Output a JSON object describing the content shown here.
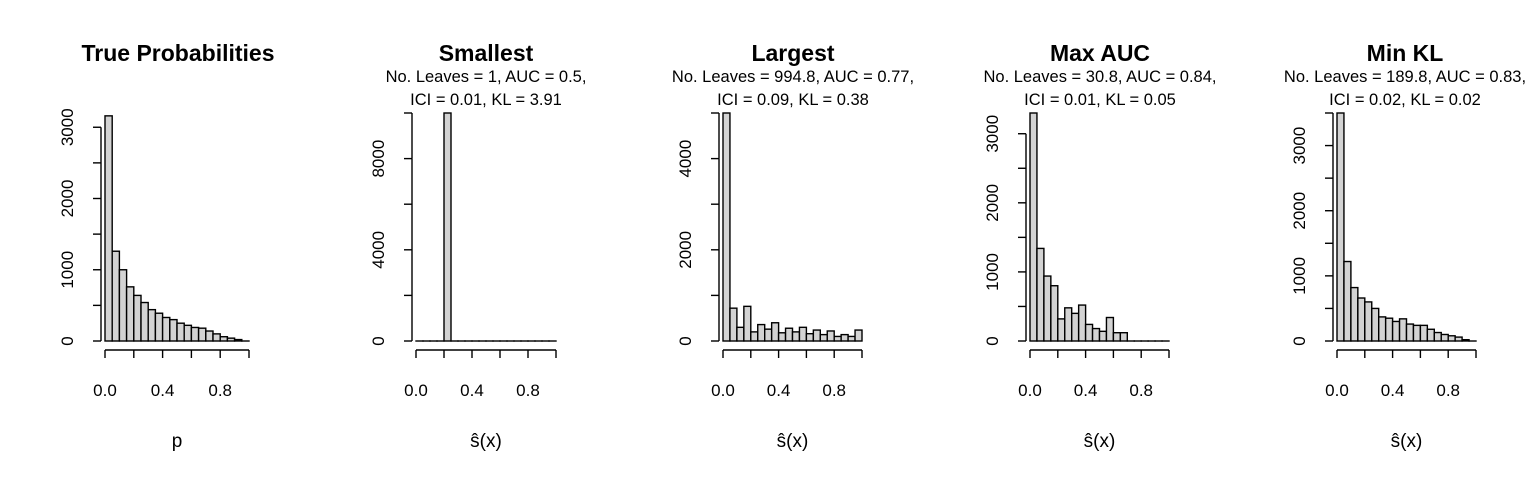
{
  "chart_data": [
    {
      "type": "bar",
      "title": "True Probabilities",
      "subtitle": [],
      "xlabel": "p",
      "ylabel": "",
      "xlim": [
        0,
        1
      ],
      "ylim": [
        0,
        3200
      ],
      "yticks": [
        0,
        1000,
        2000,
        3000
      ],
      "xticks": [
        "0.0",
        "0.4",
        "0.8"
      ],
      "bin_width": 0.05,
      "values": [
        3160,
        1260,
        1000,
        760,
        640,
        540,
        440,
        390,
        330,
        300,
        250,
        220,
        190,
        180,
        140,
        100,
        60,
        40,
        20,
        0
      ]
    },
    {
      "type": "bar",
      "title": "Smallest",
      "subtitle": [
        "No. Leaves = 1, AUC = 0.5,",
        "ICI = 0.01, KL = 3.91"
      ],
      "xlabel": "ŝ(x)",
      "ylabel": "",
      "xlim": [
        0,
        1
      ],
      "ylim": [
        0,
        10000
      ],
      "yticks": [
        0,
        4000,
        8000
      ],
      "xticks": [
        "0.0",
        "0.4",
        "0.8"
      ],
      "bin_width": 0.05,
      "values": [
        0,
        0,
        0,
        0,
        10000,
        0,
        0,
        0,
        0,
        0,
        0,
        0,
        0,
        0,
        0,
        0,
        0,
        0,
        0,
        0
      ]
    },
    {
      "type": "bar",
      "title": "Largest",
      "subtitle": [
        "No. Leaves = 994.8, AUC = 0.77,",
        "ICI = 0.09, KL = 0.38"
      ],
      "xlabel": "ŝ(x)",
      "ylabel": "",
      "xlim": [
        0,
        1
      ],
      "ylim": [
        0,
        5000
      ],
      "yticks": [
        0,
        2000,
        4000
      ],
      "xticks": [
        "0.0",
        "0.4",
        "0.8"
      ],
      "bin_width": 0.05,
      "values": [
        5000,
        720,
        300,
        760,
        200,
        360,
        260,
        400,
        180,
        280,
        200,
        300,
        160,
        240,
        140,
        220,
        100,
        140,
        100,
        240
      ]
    },
    {
      "type": "bar",
      "title": "Max AUC",
      "subtitle": [
        "No. Leaves = 30.8, AUC = 0.84,",
        "ICI = 0.01, KL = 0.05"
      ],
      "xlabel": "ŝ(x)",
      "ylabel": "",
      "xlim": [
        0,
        1
      ],
      "ylim": [
        0,
        3300
      ],
      "yticks": [
        0,
        1000,
        2000,
        3000
      ],
      "xticks": [
        "0.0",
        "0.4",
        "0.8"
      ],
      "bin_width": 0.05,
      "values": [
        3300,
        1340,
        940,
        800,
        320,
        480,
        400,
        520,
        240,
        180,
        140,
        340,
        120,
        120,
        0,
        0,
        0,
        0,
        0,
        0
      ]
    },
    {
      "type": "bar",
      "title": "Min KL",
      "subtitle": [
        "No. Leaves = 189.8, AUC = 0.83,",
        "ICI = 0.02, KL = 0.02"
      ],
      "xlabel": "ŝ(x)",
      "ylabel": "",
      "xlim": [
        0,
        1
      ],
      "ylim": [
        0,
        3500
      ],
      "yticks": [
        0,
        1000,
        2000,
        3000
      ],
      "xticks": [
        "0.0",
        "0.4",
        "0.8"
      ],
      "bin_width": 0.05,
      "values": [
        3500,
        1220,
        820,
        660,
        600,
        500,
        370,
        350,
        300,
        340,
        260,
        240,
        240,
        180,
        130,
        100,
        80,
        60,
        20,
        0
      ]
    }
  ]
}
